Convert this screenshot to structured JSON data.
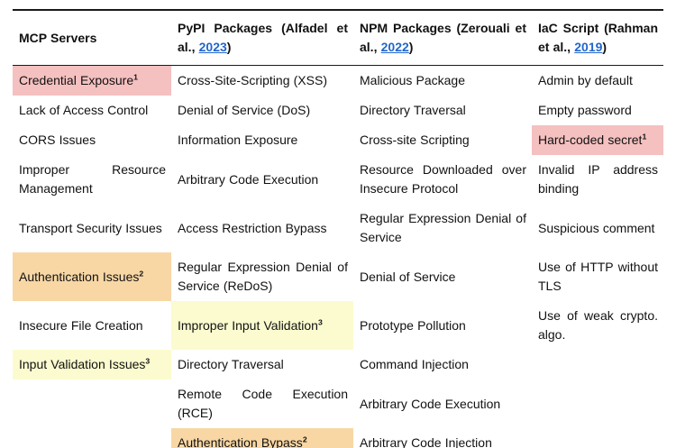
{
  "table": {
    "header": [
      {
        "parts": [
          {
            "text": "MCP Servers"
          }
        ]
      },
      {
        "parts": [
          {
            "text": "PyPI Packages (Alfadel et al., "
          },
          {
            "text": "2023",
            "link": true
          },
          {
            "text": ")"
          }
        ]
      },
      {
        "parts": [
          {
            "text": "NPM Packages (Zerouali et al., "
          },
          {
            "text": "2022",
            "link": true
          },
          {
            "text": ")"
          }
        ]
      },
      {
        "parts": [
          {
            "text": "IaC Script (Rahman et al., "
          },
          {
            "text": "2019",
            "link": true
          },
          {
            "text": ")"
          }
        ]
      }
    ],
    "rows": [
      [
        {
          "text": "Credential Exposure",
          "sup": "1",
          "highlight": "pink"
        },
        {
          "text": "Cross-Site-Scripting (XSS)"
        },
        {
          "text": "Malicious Package"
        },
        {
          "text": "Admin by default"
        }
      ],
      [
        {
          "text": "Lack of Access Control"
        },
        {
          "text": "Denial of Service (DoS)"
        },
        {
          "text": "Directory Traversal"
        },
        {
          "text": "Empty password"
        }
      ],
      [
        {
          "text": "CORS Issues"
        },
        {
          "text": "Information Exposure"
        },
        {
          "text": "Cross-site Scripting"
        },
        {
          "text": "Hard-coded secret",
          "sup": "1",
          "highlight": "pink"
        }
      ],
      [
        {
          "text": "Improper Resource Management"
        },
        {
          "text": "Arbitrary Code Execution"
        },
        {
          "text": "Resource Downloaded over Insecure Protocol"
        },
        {
          "text": "Invalid IP address binding"
        }
      ],
      [
        {
          "text": "Transport Security Issues"
        },
        {
          "text": "Access Restriction Bypass"
        },
        {
          "text": "Regular Expression Denial of Service"
        },
        {
          "text": "Suspicious comment"
        }
      ],
      [
        {
          "text": "Authentication Issues",
          "sup": "2",
          "highlight": "orange"
        },
        {
          "text": "Regular Expression Denial of Service (ReDoS)"
        },
        {
          "text": "Denial of Service"
        },
        {
          "text": "Use of HTTP without TLS"
        }
      ],
      [
        {
          "text": "Insecure File Creation"
        },
        {
          "text": "Improper Input Validation",
          "sup": "3",
          "highlight": "yellow"
        },
        {
          "text": "Prototype Pollution"
        },
        {
          "text": "Use of weak crypto. algo."
        }
      ],
      [
        {
          "text": "Input Validation Issues",
          "sup": "3",
          "highlight": "yellow"
        },
        {
          "text": "Directory Traversal"
        },
        {
          "text": "Command Injection"
        },
        {
          "text": ""
        }
      ],
      [
        {
          "text": ""
        },
        {
          "text": "Remote Code Execution (RCE)"
        },
        {
          "text": "Arbitrary Code Execution"
        },
        {
          "text": ""
        }
      ],
      [
        {
          "text": ""
        },
        {
          "text": "Authentication Bypass",
          "sup": "2",
          "highlight": "orange"
        },
        {
          "text": "Arbitrary Code Injection"
        },
        {
          "text": ""
        }
      ]
    ]
  },
  "colors": {
    "pink": "#f5c0c0",
    "orange": "#f8d7a5",
    "yellow": "#fbfbcf",
    "link": "#2166cc",
    "rule": "#1a1a1a"
  }
}
